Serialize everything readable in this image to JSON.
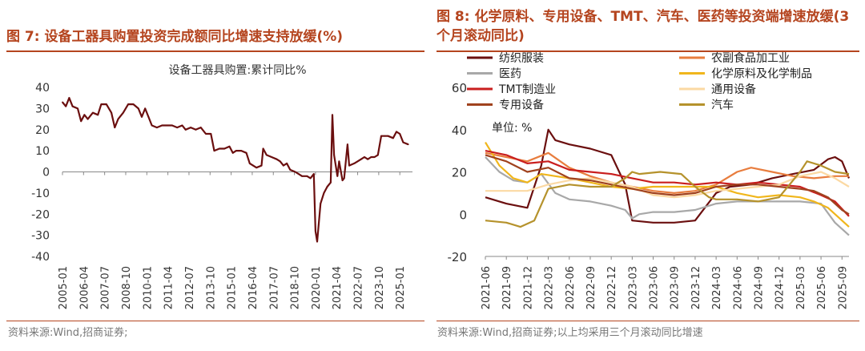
{
  "fig7": {
    "title": "图 7: 设备工器具购置投资完成额同比增速支持放缓(%)",
    "source": "资料来源:Wind,招商证券;",
    "chart_data": {
      "type": "line",
      "title": "设备工器具购置:累计同比%",
      "ylim": [
        -40,
        40
      ],
      "yticks": [
        40,
        30,
        20,
        10,
        0,
        -10,
        -20,
        -30,
        -40
      ],
      "x_start": 2005.0,
      "x_end": 2025.75,
      "xticks": [
        "2005-01",
        "2006-04",
        "2007-07",
        "2008-10",
        "2010-01",
        "2011-04",
        "2012-07",
        "2013-10",
        "2015-01",
        "2016-04",
        "2017-07",
        "2018-10",
        "2020-01",
        "2021-04",
        "2022-07",
        "2023-10",
        "2025-01"
      ],
      "color": "#6b0f0f",
      "series": [
        {
          "name": "设备工器具购置:累计同比%",
          "points": [
            [
              2005.0,
              33
            ],
            [
              2005.2,
              31
            ],
            [
              2005.4,
              35
            ],
            [
              2005.6,
              31
            ],
            [
              2005.9,
              30
            ],
            [
              2006.1,
              24
            ],
            [
              2006.3,
              27
            ],
            [
              2006.5,
              25
            ],
            [
              2006.8,
              28
            ],
            [
              2007.1,
              27
            ],
            [
              2007.3,
              32
            ],
            [
              2007.6,
              32
            ],
            [
              2007.9,
              28
            ],
            [
              2008.1,
              21
            ],
            [
              2008.3,
              25
            ],
            [
              2008.6,
              28
            ],
            [
              2008.9,
              32
            ],
            [
              2009.2,
              32
            ],
            [
              2009.5,
              30
            ],
            [
              2009.7,
              26
            ],
            [
              2009.9,
              30
            ],
            [
              2010.1,
              26
            ],
            [
              2010.3,
              22
            ],
            [
              2010.6,
              21
            ],
            [
              2010.9,
              22
            ],
            [
              2011.2,
              22
            ],
            [
              2011.5,
              22
            ],
            [
              2011.8,
              21
            ],
            [
              2012.1,
              22
            ],
            [
              2012.3,
              20
            ],
            [
              2012.6,
              21
            ],
            [
              2012.9,
              20
            ],
            [
              2013.2,
              21
            ],
            [
              2013.5,
              18
            ],
            [
              2013.8,
              18
            ],
            [
              2014.0,
              10
            ],
            [
              2014.3,
              11
            ],
            [
              2014.6,
              11
            ],
            [
              2014.9,
              12
            ],
            [
              2015.1,
              9
            ],
            [
              2015.3,
              10
            ],
            [
              2015.6,
              10
            ],
            [
              2015.9,
              9
            ],
            [
              2016.1,
              4
            ],
            [
              2016.3,
              3
            ],
            [
              2016.5,
              2
            ],
            [
              2016.8,
              3
            ],
            [
              2016.9,
              11
            ],
            [
              2017.1,
              8
            ],
            [
              2017.4,
              7
            ],
            [
              2017.7,
              6
            ],
            [
              2017.9,
              5
            ],
            [
              2018.1,
              3
            ],
            [
              2018.3,
              4
            ],
            [
              2018.5,
              1
            ],
            [
              2018.8,
              0
            ],
            [
              2019.0,
              -1
            ],
            [
              2019.2,
              -2
            ],
            [
              2019.5,
              -2
            ],
            [
              2019.7,
              -3
            ],
            [
              2019.9,
              -1
            ],
            [
              2020.0,
              -28
            ],
            [
              2020.1,
              -33
            ],
            [
              2020.3,
              -15
            ],
            [
              2020.5,
              -10
            ],
            [
              2020.7,
              -7
            ],
            [
              2020.9,
              -5
            ],
            [
              2021.0,
              27
            ],
            [
              2021.1,
              8
            ],
            [
              2021.3,
              -2
            ],
            [
              2021.4,
              5
            ],
            [
              2021.6,
              -4
            ],
            [
              2021.7,
              -3
            ],
            [
              2021.9,
              13
            ],
            [
              2022.0,
              3
            ],
            [
              2022.3,
              4
            ],
            [
              2022.5,
              5
            ],
            [
              2022.7,
              6
            ],
            [
              2022.9,
              7
            ],
            [
              2023.1,
              6
            ],
            [
              2023.3,
              7
            ],
            [
              2023.5,
              7
            ],
            [
              2023.7,
              8
            ],
            [
              2023.9,
              17
            ],
            [
              2024.1,
              17
            ],
            [
              2024.3,
              17
            ],
            [
              2024.6,
              16
            ],
            [
              2024.8,
              19
            ],
            [
              2025.0,
              18
            ],
            [
              2025.2,
              14
            ],
            [
              2025.5,
              13
            ]
          ]
        }
      ]
    }
  },
  "fig8": {
    "title": "图 8: 化学原料、专用设备、TMT、汽车、医药等投资端增速放缓(3 个月滚动同比)",
    "source": "资料来源:Wind,招商证券;以上均采用三个月滚动同比增速",
    "chart_data": {
      "type": "line",
      "unit_label": "单位: %",
      "ylim": [
        -20,
        60
      ],
      "yticks": [
        60,
        40,
        20,
        0,
        -20
      ],
      "xticks": [
        "2021-06",
        "2021-09",
        "2021-12",
        "2022-03",
        "2022-06",
        "2022-09",
        "2022-12",
        "2023-03",
        "2023-06",
        "2023-09",
        "2023-12",
        "2024-03",
        "2024-06",
        "2024-09",
        "2024-12",
        "2025-03",
        "2025-06",
        "2025-09"
      ],
      "x_start": 0,
      "x_end": 52,
      "series": [
        {
          "name": "纺织服装",
          "color": "#6b0f0f",
          "width": 2.2,
          "points": [
            [
              0,
              8
            ],
            [
              3,
              5
            ],
            [
              6,
              3
            ],
            [
              8,
              23
            ],
            [
              9,
              40
            ],
            [
              10,
              35
            ],
            [
              12,
              33
            ],
            [
              15,
              31
            ],
            [
              18,
              28
            ],
            [
              20,
              14
            ],
            [
              21,
              -3
            ],
            [
              24,
              -4
            ],
            [
              27,
              -4
            ],
            [
              30,
              -3
            ],
            [
              33,
              10
            ],
            [
              35,
              13
            ],
            [
              38,
              14
            ],
            [
              41,
              17
            ],
            [
              44,
              19
            ],
            [
              47,
              21
            ],
            [
              49,
              26
            ],
            [
              50,
              27
            ],
            [
              51,
              25
            ],
            [
              52,
              17
            ]
          ]
        },
        {
          "name": "农副食品加工业",
          "color": "#e87d3e",
          "width": 2.2,
          "points": [
            [
              0,
              29
            ],
            [
              3,
              27
            ],
            [
              6,
              25
            ],
            [
              9,
              29
            ],
            [
              12,
              22
            ],
            [
              15,
              18
            ],
            [
              18,
              15
            ],
            [
              21,
              13
            ],
            [
              24,
              11
            ],
            [
              27,
              10
            ],
            [
              30,
              11
            ],
            [
              33,
              14
            ],
            [
              36,
              20
            ],
            [
              38,
              22
            ],
            [
              41,
              20
            ],
            [
              44,
              18
            ],
            [
              47,
              17
            ],
            [
              50,
              18
            ],
            [
              52,
              18
            ]
          ]
        },
        {
          "name": "医药",
          "color": "#a8a8a8",
          "width": 2.2,
          "points": [
            [
              0,
              27
            ],
            [
              2,
              20
            ],
            [
              4,
              16
            ],
            [
              6,
              15
            ],
            [
              8,
              19
            ],
            [
              10,
              10
            ],
            [
              12,
              7
            ],
            [
              15,
              6
            ],
            [
              18,
              4
            ],
            [
              20,
              2
            ],
            [
              21,
              -2
            ],
            [
              22,
              0
            ],
            [
              24,
              1
            ],
            [
              27,
              1
            ],
            [
              30,
              2
            ],
            [
              33,
              5
            ],
            [
              36,
              6
            ],
            [
              39,
              6
            ],
            [
              42,
              6
            ],
            [
              45,
              6
            ],
            [
              48,
              5
            ],
            [
              50,
              -4
            ],
            [
              52,
              -10
            ]
          ]
        },
        {
          "name": "化学原料及化学制品",
          "color": "#f0b61c",
          "width": 2.2,
          "points": [
            [
              0,
              34
            ],
            [
              2,
              23
            ],
            [
              4,
              17
            ],
            [
              6,
              15
            ],
            [
              8,
              19
            ],
            [
              10,
              18
            ],
            [
              12,
              17
            ],
            [
              15,
              15
            ],
            [
              18,
              13
            ],
            [
              21,
              12
            ],
            [
              24,
              13
            ],
            [
              27,
              13
            ],
            [
              30,
              13
            ],
            [
              33,
              13
            ],
            [
              36,
              10
            ],
            [
              39,
              8
            ],
            [
              42,
              9
            ],
            [
              45,
              8
            ],
            [
              47,
              6
            ],
            [
              49,
              3
            ],
            [
              51,
              -3
            ],
            [
              52,
              -6
            ]
          ]
        },
        {
          "name": "TMT制造业",
          "color": "#c91e1e",
          "width": 2.2,
          "points": [
            [
              0,
              30
            ],
            [
              3,
              28
            ],
            [
              6,
              24
            ],
            [
              9,
              25
            ],
            [
              12,
              21
            ],
            [
              15,
              20
            ],
            [
              18,
              19
            ],
            [
              21,
              17
            ],
            [
              24,
              15
            ],
            [
              27,
              15
            ],
            [
              30,
              14
            ],
            [
              33,
              15
            ],
            [
              36,
              14
            ],
            [
              39,
              15
            ],
            [
              42,
              14
            ],
            [
              45,
              13
            ],
            [
              48,
              9
            ],
            [
              50,
              6
            ],
            [
              52,
              -1
            ]
          ]
        },
        {
          "name": "通用设备",
          "color": "#fbd9a3",
          "width": 2.2,
          "points": [
            [
              0,
              11
            ],
            [
              3,
              11
            ],
            [
              6,
              11
            ],
            [
              9,
              14
            ],
            [
              12,
              16
            ],
            [
              15,
              17
            ],
            [
              18,
              15
            ],
            [
              21,
              13
            ],
            [
              24,
              9
            ],
            [
              27,
              8
            ],
            [
              30,
              9
            ],
            [
              33,
              11
            ],
            [
              36,
              12
            ],
            [
              39,
              13
            ],
            [
              42,
              14
            ],
            [
              45,
              18
            ],
            [
              48,
              20
            ],
            [
              50,
              17
            ],
            [
              52,
              13
            ]
          ]
        },
        {
          "name": "专用设备",
          "color": "#a0421e",
          "width": 2.2,
          "points": [
            [
              0,
              28
            ],
            [
              3,
              25
            ],
            [
              6,
              20
            ],
            [
              9,
              22
            ],
            [
              12,
              17
            ],
            [
              15,
              16
            ],
            [
              18,
              14
            ],
            [
              21,
              12
            ],
            [
              24,
              10
            ],
            [
              27,
              9
            ],
            [
              30,
              10
            ],
            [
              33,
              13
            ],
            [
              36,
              14
            ],
            [
              39,
              14
            ],
            [
              42,
              13
            ],
            [
              45,
              12
            ],
            [
              47,
              11
            ],
            [
              49,
              8
            ],
            [
              51,
              2
            ],
            [
              52,
              0
            ]
          ]
        },
        {
          "name": "汽车",
          "color": "#b5922c",
          "width": 2.2,
          "points": [
            [
              0,
              -3
            ],
            [
              3,
              -4
            ],
            [
              5,
              -6
            ],
            [
              7,
              -3
            ],
            [
              9,
              12
            ],
            [
              12,
              14
            ],
            [
              15,
              13
            ],
            [
              18,
              13
            ],
            [
              20,
              17
            ],
            [
              21,
              20
            ],
            [
              22,
              19
            ],
            [
              25,
              20
            ],
            [
              28,
              19
            ],
            [
              30,
              13
            ],
            [
              32,
              8
            ],
            [
              33,
              7
            ],
            [
              36,
              7
            ],
            [
              39,
              6
            ],
            [
              42,
              8
            ],
            [
              45,
              20
            ],
            [
              46,
              25
            ],
            [
              48,
              23
            ],
            [
              50,
              20
            ],
            [
              52,
              19
            ]
          ]
        }
      ]
    }
  }
}
